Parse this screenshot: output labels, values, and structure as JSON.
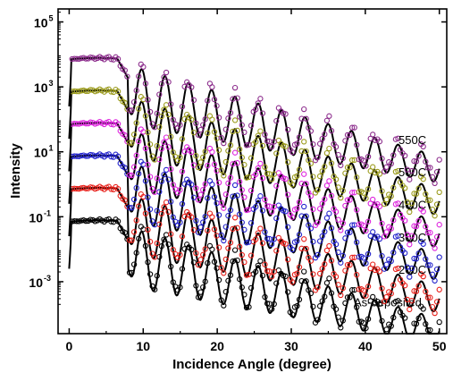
{
  "chart_data": {
    "type": "scatter",
    "xlabel": "Incidence Angle (degree)",
    "ylabel": "Intensity",
    "xlim": [
      -1.5,
      51
    ],
    "ylim": [
      -4.6,
      5.4
    ],
    "y_scale": "log",
    "x_ticks": [
      0,
      10,
      20,
      30,
      40,
      50
    ],
    "y_ticks": [
      {
        "base": "10",
        "exp": "5",
        "value": 100000
      },
      {
        "base": "10",
        "exp": "3",
        "value": 1000
      },
      {
        "base": "10",
        "exp": "1",
        "value": 10
      },
      {
        "base": "10",
        "exp": "-1",
        "value": 0.1
      },
      {
        "base": "10",
        "exp": "-3",
        "value": 0.001
      }
    ],
    "grid": false,
    "legend": "inline labels at right end of each curve",
    "fit_line_color": "#000000",
    "series": [
      {
        "name": "As-deposited",
        "color": "#000000",
        "offset_log10": 0.0,
        "points": [
          [
            0.5,
            -2.0
          ],
          [
            2,
            -0.2
          ],
          [
            4,
            -0.1
          ],
          [
            6,
            -0.15
          ],
          [
            8,
            -1.0
          ],
          [
            8.5,
            -3.0
          ],
          [
            10,
            -0.6
          ],
          [
            11.2,
            -2.2
          ],
          [
            13,
            -0.9
          ],
          [
            14.3,
            -2.5
          ],
          [
            16,
            -1.1
          ],
          [
            17.5,
            -2.7
          ],
          [
            19,
            -1.3
          ],
          [
            20.8,
            -2.9
          ],
          [
            22.2,
            -1.6
          ],
          [
            24.2,
            -3.2
          ],
          [
            25.5,
            -1.9
          ],
          [
            27.2,
            -3.4
          ],
          [
            29,
            -2.3
          ],
          [
            30.5,
            -3.6
          ],
          [
            32,
            -2.6
          ],
          [
            34,
            -3.7
          ],
          [
            36,
            -2.8
          ],
          [
            38,
            -3.6
          ],
          [
            40,
            -3.1
          ],
          [
            42,
            -3.8
          ],
          [
            44,
            -3.2
          ],
          [
            46,
            -3.7
          ],
          [
            48,
            -3.3
          ],
          [
            50,
            -3.6
          ]
        ]
      },
      {
        "name": "200C",
        "color": "#e8201a",
        "offset_log10": 1.0,
        "points": [
          [
            0.5,
            -1.0
          ],
          [
            2,
            0.8
          ],
          [
            4,
            0.9
          ],
          [
            6,
            0.85
          ],
          [
            8,
            0.0
          ],
          [
            8.5,
            -2.0
          ],
          [
            10,
            0.4
          ],
          [
            11.2,
            -1.2
          ],
          [
            13,
            0.1
          ],
          [
            14.3,
            -1.5
          ],
          [
            16,
            -0.1
          ],
          [
            17.5,
            -1.7
          ],
          [
            19,
            -0.3
          ],
          [
            20.8,
            -1.9
          ],
          [
            22.2,
            -0.6
          ],
          [
            24.2,
            -2.1
          ],
          [
            25.5,
            -0.9
          ],
          [
            27.5,
            -2.2
          ],
          [
            29,
            -1.2
          ],
          [
            31,
            -2.3
          ],
          [
            33,
            -1.7
          ],
          [
            35,
            -2.4
          ],
          [
            37,
            -2.1
          ],
          [
            39,
            -2.5
          ],
          [
            41,
            -2.3
          ],
          [
            43,
            -2.6
          ],
          [
            45,
            -2.4
          ],
          [
            47,
            -2.6
          ],
          [
            49,
            -2.5
          ],
          [
            50,
            -2.6
          ]
        ]
      },
      {
        "name": "300C",
        "color": "#2222cc",
        "offset_log10": 2.0,
        "points": [
          [
            0.5,
            0.0
          ],
          [
            2,
            1.8
          ],
          [
            4,
            1.9
          ],
          [
            6,
            1.85
          ],
          [
            8,
            1.0
          ],
          [
            8.5,
            -1.0
          ],
          [
            10,
            1.4
          ],
          [
            11.2,
            -0.2
          ],
          [
            13,
            1.1
          ],
          [
            14.3,
            -0.5
          ],
          [
            16,
            0.9
          ],
          [
            17.5,
            -0.7
          ],
          [
            19,
            0.7
          ],
          [
            20.8,
            -0.9
          ],
          [
            22.2,
            0.4
          ],
          [
            24.2,
            -1.1
          ],
          [
            25.5,
            0.1
          ],
          [
            27.5,
            -1.2
          ],
          [
            29,
            -0.2
          ],
          [
            31,
            -1.3
          ],
          [
            33,
            -0.6
          ],
          [
            35,
            -1.4
          ],
          [
            37,
            -0.9
          ],
          [
            39,
            -1.5
          ],
          [
            41,
            -1.2
          ],
          [
            43,
            -1.6
          ],
          [
            45,
            -1.3
          ],
          [
            47,
            -1.6
          ],
          [
            49,
            -1.5
          ],
          [
            50,
            -1.6
          ]
        ]
      },
      {
        "name": "400C",
        "color": "#dd22dd",
        "offset_log10": 3.0,
        "points": [
          [
            0.5,
            1.0
          ],
          [
            2,
            2.8
          ],
          [
            4,
            2.9
          ],
          [
            6,
            2.85
          ],
          [
            8,
            2.0
          ],
          [
            8.5,
            0.0
          ],
          [
            10,
            2.4
          ],
          [
            11.2,
            0.8
          ],
          [
            13,
            2.1
          ],
          [
            14.3,
            0.5
          ],
          [
            16,
            1.9
          ],
          [
            17.5,
            0.3
          ],
          [
            19,
            1.7
          ],
          [
            20.8,
            0.1
          ],
          [
            22.2,
            1.4
          ],
          [
            24.2,
            -0.1
          ],
          [
            25.5,
            1.1
          ],
          [
            27.5,
            -0.2
          ],
          [
            29,
            0.8
          ],
          [
            31,
            -0.3
          ],
          [
            33,
            0.4
          ],
          [
            35,
            -0.4
          ],
          [
            37,
            0.1
          ],
          [
            39,
            -0.5
          ],
          [
            41,
            -0.2
          ],
          [
            43,
            -0.6
          ],
          [
            45,
            -0.3
          ],
          [
            47,
            -0.6
          ],
          [
            49,
            -0.5
          ],
          [
            50,
            -0.6
          ]
        ]
      },
      {
        "name": "500C",
        "color": "#9a9a1a",
        "offset_log10": 4.0,
        "points": [
          [
            0.5,
            2.0
          ],
          [
            2,
            3.8
          ],
          [
            4,
            3.9
          ],
          [
            6,
            3.85
          ],
          [
            8,
            3.0
          ],
          [
            8.5,
            1.0
          ],
          [
            10,
            3.4
          ],
          [
            11.2,
            1.8
          ],
          [
            13,
            3.1
          ],
          [
            14.3,
            1.5
          ],
          [
            16,
            2.9
          ],
          [
            17.5,
            1.3
          ],
          [
            19,
            2.7
          ],
          [
            20.8,
            1.1
          ],
          [
            22.2,
            2.4
          ],
          [
            24.2,
            0.9
          ],
          [
            25.5,
            2.1
          ],
          [
            27.5,
            0.8
          ],
          [
            29,
            1.8
          ],
          [
            31,
            0.7
          ],
          [
            33,
            1.4
          ],
          [
            35,
            0.6
          ],
          [
            37,
            1.1
          ],
          [
            39,
            0.5
          ],
          [
            41,
            0.8
          ],
          [
            43,
            0.4
          ],
          [
            45,
            0.7
          ],
          [
            47,
            0.4
          ],
          [
            49,
            0.5
          ],
          [
            50,
            0.4
          ]
        ]
      },
      {
        "name": "550C",
        "color": "#8b2a8b",
        "offset_log10": 5.0,
        "points": [
          [
            0.5,
            3.0
          ],
          [
            2,
            4.8
          ],
          [
            4,
            4.9
          ],
          [
            6,
            4.85
          ],
          [
            8,
            4.0
          ],
          [
            8.5,
            2.0
          ],
          [
            10,
            4.4
          ],
          [
            11.2,
            2.8
          ],
          [
            13,
            4.1
          ],
          [
            14.3,
            2.5
          ],
          [
            16,
            3.9
          ],
          [
            17.5,
            2.3
          ],
          [
            19,
            3.7
          ],
          [
            20.8,
            2.1
          ],
          [
            22.2,
            3.4
          ],
          [
            24.2,
            1.9
          ],
          [
            25.5,
            3.1
          ],
          [
            27.5,
            1.8
          ],
          [
            29,
            2.8
          ],
          [
            31,
            1.7
          ],
          [
            33,
            2.4
          ],
          [
            35,
            1.6
          ],
          [
            37,
            2.1
          ],
          [
            39,
            1.5
          ],
          [
            41,
            1.8
          ],
          [
            43,
            1.4
          ],
          [
            45,
            1.7
          ],
          [
            47,
            1.4
          ],
          [
            49,
            1.5
          ],
          [
            50,
            1.4
          ]
        ]
      }
    ]
  }
}
